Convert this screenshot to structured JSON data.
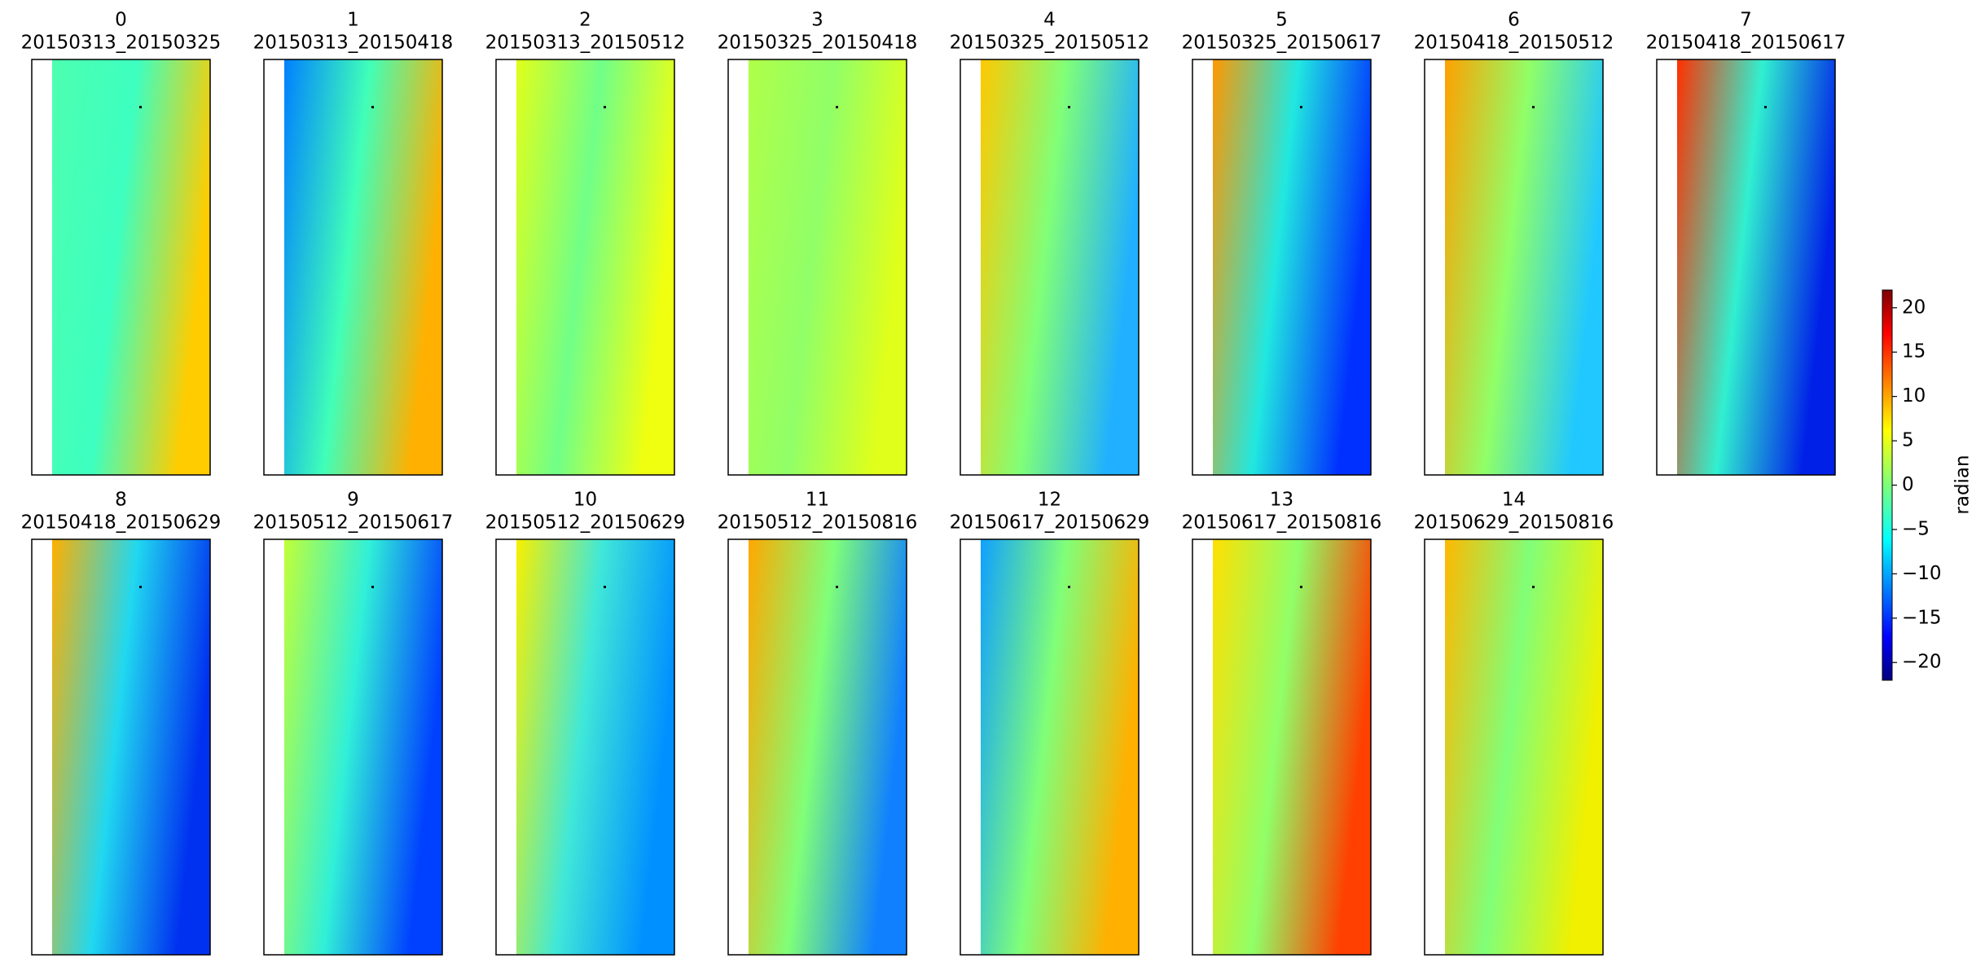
{
  "chart_data": {
    "type": "image-grid",
    "panels": [
      {
        "index": "0",
        "name": "20150313_20150325"
      },
      {
        "index": "1",
        "name": "20150313_20150418"
      },
      {
        "index": "2",
        "name": "20150313_20150512"
      },
      {
        "index": "3",
        "name": "20150325_20150418"
      },
      {
        "index": "4",
        "name": "20150325_20150512"
      },
      {
        "index": "5",
        "name": "20150325_20150617"
      },
      {
        "index": "6",
        "name": "20150418_20150512"
      },
      {
        "index": "7",
        "name": "20150418_20150617"
      },
      {
        "index": "8",
        "name": "20150418_20150629"
      },
      {
        "index": "9",
        "name": "20150512_20150617"
      },
      {
        "index": "10",
        "name": "20150512_20150629"
      },
      {
        "index": "11",
        "name": "20150512_20150816"
      },
      {
        "index": "12",
        "name": "20150617_20150629"
      },
      {
        "index": "13",
        "name": "20150617_20150816"
      },
      {
        "index": "14",
        "name": "20150629_20150816"
      }
    ],
    "colorbar": {
      "label": "radian",
      "colormap": "jet",
      "ylim": [
        -22,
        22
      ],
      "yticks": [
        {
          "value": -20,
          "label": "−20"
        },
        {
          "value": -15,
          "label": "−15"
        },
        {
          "value": -10,
          "label": "−10"
        },
        {
          "value": -5,
          "label": "−5"
        },
        0,
        5,
        10,
        15,
        20
      ]
    }
  }
}
